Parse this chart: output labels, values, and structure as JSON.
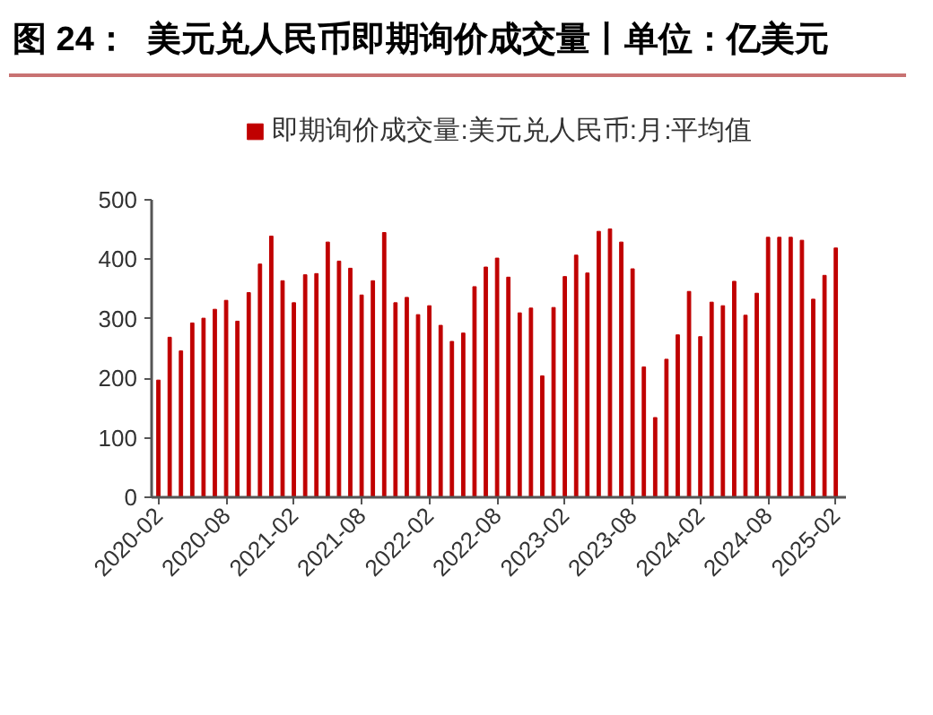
{
  "chart_data": {
    "type": "bar",
    "title": "图 24：  美元兑人民币即期询价成交量丨单位：亿美元",
    "categories": [
      "2020-02",
      null,
      null,
      null,
      null,
      null,
      "2020-08",
      null,
      null,
      null,
      null,
      null,
      "2021-02",
      null,
      null,
      null,
      null,
      null,
      "2021-08",
      null,
      null,
      null,
      null,
      null,
      "2022-02",
      null,
      null,
      null,
      null,
      null,
      "2022-08",
      null,
      null,
      null,
      null,
      null,
      "2023-02",
      null,
      null,
      null,
      null,
      null,
      "2023-08",
      null,
      null,
      null,
      null,
      null,
      "2024-02",
      null,
      null,
      null,
      null,
      null,
      "2024-08",
      null,
      null,
      null,
      null,
      null,
      "2025-02"
    ],
    "series": [
      {
        "name": "即期询价成交量:美元兑人民币:月:平均值",
        "color": "#c00000",
        "values": [
          197,
          269,
          246,
          293,
          301,
          316,
          331,
          296,
          344,
          392,
          439,
          364,
          327,
          374,
          376,
          429,
          397,
          385,
          340,
          364,
          445,
          327,
          336,
          307,
          322,
          289,
          262,
          276,
          354,
          387,
          402,
          370,
          310,
          318,
          204,
          319,
          371,
          407,
          377,
          447,
          451,
          429,
          384,
          219,
          134,
          232,
          273,
          346,
          270,
          328,
          322,
          363,
          306,
          343,
          437,
          437,
          437,
          432,
          333,
          373,
          419
        ]
      }
    ],
    "ylim": [
      0,
      500
    ],
    "yticks": [
      0,
      100,
      200,
      300,
      400,
      500
    ],
    "grid": false,
    "legend": "top"
  }
}
